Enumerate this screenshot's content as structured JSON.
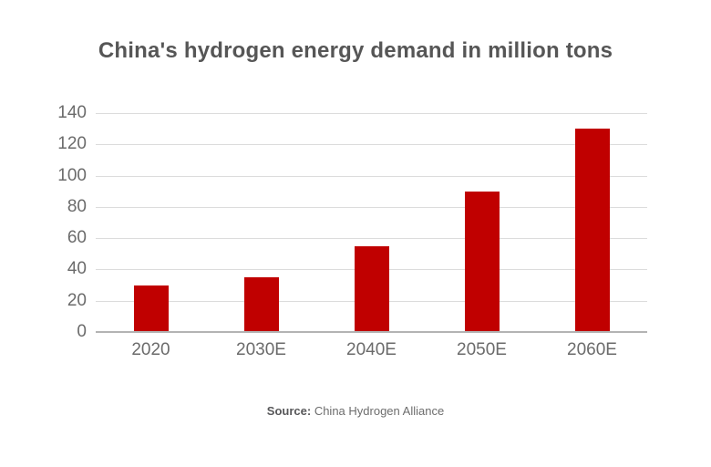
{
  "title": "China's hydrogen energy demand in million tons",
  "source": {
    "label": "Source:",
    "text": " China Hydrogen Alliance"
  },
  "colors": {
    "bar": "#c00000",
    "title_text": "#565656",
    "axis_label": "#6b6b6b",
    "gridline": "#dcdcdc",
    "baseline": "#b3b3b3",
    "background": "#ffffff"
  },
  "chart_data": {
    "type": "bar",
    "categories": [
      "2020",
      "2030E",
      "2040E",
      "2050E",
      "2060E"
    ],
    "values": [
      30,
      35,
      55,
      90,
      130
    ],
    "title": "China's hydrogen energy demand in million tons",
    "xlabel": "",
    "ylabel": "",
    "ylim": [
      0,
      140
    ],
    "yticks": [
      0,
      20,
      40,
      60,
      80,
      100,
      120,
      140
    ],
    "grid": true,
    "legend": false,
    "bar_color": "#c00000"
  }
}
